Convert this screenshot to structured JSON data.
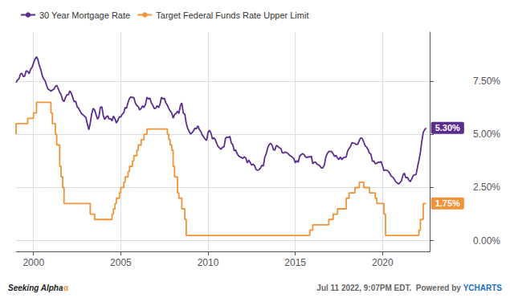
{
  "chart_data": {
    "type": "line",
    "series": [
      {
        "name": "30 Year Mortgage Rate",
        "color": "#5b2d8e",
        "x": [
          1999.0,
          1999.08,
          1999.17,
          1999.25,
          1999.33,
          1999.42,
          1999.5,
          1999.58,
          1999.67,
          1999.75,
          1999.83,
          1999.92,
          2000.0,
          2000.08,
          2000.17,
          2000.25,
          2000.33,
          2000.42,
          2000.5,
          2000.58,
          2000.67,
          2000.75,
          2000.83,
          2000.92,
          2001.0,
          2001.08,
          2001.17,
          2001.25,
          2001.33,
          2001.42,
          2001.5,
          2001.58,
          2001.67,
          2001.75,
          2001.83,
          2001.92,
          2002.0,
          2002.08,
          2002.17,
          2002.25,
          2002.33,
          2002.42,
          2002.5,
          2002.58,
          2002.67,
          2002.75,
          2002.83,
          2002.92,
          2003.0,
          2003.08,
          2003.17,
          2003.25,
          2003.33,
          2003.42,
          2003.5,
          2003.58,
          2003.67,
          2003.75,
          2003.83,
          2003.92,
          2004.0,
          2004.08,
          2004.17,
          2004.25,
          2004.33,
          2004.42,
          2004.5,
          2004.58,
          2004.67,
          2004.75,
          2004.83,
          2004.92,
          2005.0,
          2005.08,
          2005.17,
          2005.25,
          2005.33,
          2005.42,
          2005.5,
          2005.58,
          2005.67,
          2005.75,
          2005.83,
          2005.92,
          2006.0,
          2006.08,
          2006.17,
          2006.25,
          2006.33,
          2006.42,
          2006.5,
          2006.58,
          2006.67,
          2006.75,
          2006.83,
          2006.92,
          2007.0,
          2007.08,
          2007.17,
          2007.25,
          2007.33,
          2007.42,
          2007.5,
          2007.58,
          2007.67,
          2007.75,
          2007.83,
          2007.92,
          2008.0,
          2008.08,
          2008.17,
          2008.25,
          2008.33,
          2008.42,
          2008.5,
          2008.58,
          2008.67,
          2008.75,
          2008.83,
          2008.92,
          2009.0,
          2009.08,
          2009.17,
          2009.25,
          2009.33,
          2009.42,
          2009.5,
          2009.58,
          2009.67,
          2009.75,
          2009.83,
          2009.92,
          2010.0,
          2010.08,
          2010.17,
          2010.25,
          2010.33,
          2010.42,
          2010.5,
          2010.58,
          2010.67,
          2010.75,
          2010.83,
          2010.92,
          2011.0,
          2011.08,
          2011.17,
          2011.25,
          2011.33,
          2011.42,
          2011.5,
          2011.58,
          2011.67,
          2011.75,
          2011.83,
          2011.92,
          2012.0,
          2012.08,
          2012.17,
          2012.25,
          2012.33,
          2012.42,
          2012.5,
          2012.58,
          2012.67,
          2012.75,
          2012.83,
          2012.92,
          2013.0,
          2013.08,
          2013.17,
          2013.25,
          2013.33,
          2013.42,
          2013.5,
          2013.58,
          2013.67,
          2013.75,
          2013.83,
          2013.92,
          2014.0,
          2014.08,
          2014.17,
          2014.25,
          2014.33,
          2014.42,
          2014.5,
          2014.58,
          2014.67,
          2014.75,
          2014.83,
          2014.92,
          2015.0,
          2015.08,
          2015.17,
          2015.25,
          2015.33,
          2015.42,
          2015.5,
          2015.58,
          2015.67,
          2015.75,
          2015.83,
          2015.92,
          2016.0,
          2016.08,
          2016.17,
          2016.25,
          2016.33,
          2016.42,
          2016.5,
          2016.58,
          2016.67,
          2016.75,
          2016.83,
          2016.92,
          2017.0,
          2017.08,
          2017.17,
          2017.25,
          2017.33,
          2017.42,
          2017.5,
          2017.58,
          2017.67,
          2017.75,
          2017.83,
          2017.92,
          2018.0,
          2018.08,
          2018.17,
          2018.25,
          2018.33,
          2018.42,
          2018.5,
          2018.58,
          2018.67,
          2018.75,
          2018.83,
          2018.92,
          2019.0,
          2019.08,
          2019.17,
          2019.25,
          2019.33,
          2019.42,
          2019.5,
          2019.58,
          2019.67,
          2019.75,
          2019.83,
          2019.92,
          2020.0,
          2020.08,
          2020.17,
          2020.25,
          2020.33,
          2020.42,
          2020.5,
          2020.58,
          2020.67,
          2020.75,
          2020.83,
          2020.92,
          2021.0,
          2021.08,
          2021.17,
          2021.25,
          2021.33,
          2021.42,
          2021.5,
          2021.58,
          2021.67,
          2021.75,
          2021.83,
          2021.92,
          2022.0,
          2022.08,
          2022.17,
          2022.25,
          2022.33,
          2022.42,
          2022.5
        ],
        "values": [
          7.43,
          7.55,
          7.61,
          7.83,
          7.87,
          7.71,
          7.74,
          7.99,
          7.95,
          7.85,
          8.05,
          8.15,
          8.35,
          8.52,
          8.64,
          8.52,
          8.24,
          8.03,
          7.77,
          7.61,
          7.51,
          7.29,
          7.13,
          7.08,
          7.03,
          7.08,
          7.12,
          7.24,
          7.31,
          7.13,
          6.97,
          6.87,
          6.61,
          6.54,
          6.72,
          6.86,
          6.86,
          7.04,
          6.92,
          6.73,
          6.53,
          6.55,
          6.3,
          6.23,
          6.09,
          5.97,
          5.92,
          5.85,
          5.8,
          5.51,
          5.21,
          5.52,
          5.94,
          6.22,
          6.15,
          5.93,
          5.71,
          5.83,
          6.27,
          6.29,
          5.87,
          5.7,
          5.82,
          5.87,
          5.72,
          5.73,
          5.63,
          5.86,
          5.72,
          5.53,
          5.66,
          5.82,
          5.82,
          5.94,
          6.01,
          6.26,
          6.22,
          6.51,
          6.68,
          6.76,
          6.73,
          6.73,
          6.48,
          6.35,
          6.31,
          6.14,
          6.22,
          6.34,
          6.26,
          6.42,
          6.74,
          6.66,
          6.7,
          6.48,
          6.37,
          6.21,
          6.22,
          6.34,
          6.26,
          6.42,
          6.74,
          6.66,
          6.7,
          6.48,
          6.37,
          6.21,
          6.1,
          6.0,
          5.76,
          5.93,
          5.98,
          6.08,
          5.98,
          6.36,
          6.47,
          6.0,
          5.94,
          5.53,
          5.29,
          5.14,
          5.01,
          5.07,
          5.17,
          5.29,
          5.25,
          5.4,
          5.22,
          5.14,
          4.97,
          4.88,
          4.78,
          4.71,
          5.09,
          5.19,
          5.05,
          4.78,
          4.84,
          4.74,
          4.56,
          4.43,
          4.35,
          4.3,
          4.39,
          4.42,
          4.81,
          4.87,
          4.84,
          4.91,
          4.6,
          4.51,
          4.22,
          4.27,
          4.09,
          3.99,
          3.94,
          3.91,
          3.87,
          3.95,
          3.87,
          3.66,
          3.79,
          3.67,
          3.55,
          3.6,
          3.52,
          3.35,
          3.31,
          3.34,
          3.41,
          3.54,
          3.51,
          3.93,
          4.07,
          4.37,
          4.51,
          4.58,
          4.49,
          4.27,
          4.26,
          4.48,
          4.43,
          4.37,
          4.34,
          4.14,
          4.12,
          4.17,
          4.14,
          4.1,
          4.02,
          3.97,
          3.93,
          3.86,
          3.66,
          3.76,
          3.69,
          3.98,
          4.04,
          4.09,
          4.05,
          3.94,
          3.91,
          3.95,
          3.94,
          3.97,
          3.62,
          3.68,
          3.69,
          3.59,
          3.57,
          3.51,
          3.41,
          3.43,
          3.57,
          3.94,
          4.09,
          4.2,
          4.19,
          4.2,
          4.08,
          3.96,
          4.01,
          3.88,
          3.82,
          3.93,
          3.81,
          3.9,
          3.92,
          3.94,
          4.22,
          4.33,
          4.44,
          4.61,
          4.59,
          4.57,
          4.52,
          4.53,
          4.72,
          4.83,
          4.81,
          4.64,
          4.46,
          4.41,
          4.28,
          4.12,
          4.07,
          3.73,
          3.75,
          3.62,
          3.64,
          3.69,
          3.68,
          3.72,
          3.51,
          3.29,
          3.33,
          3.31,
          3.26,
          3.15,
          3.03,
          2.99,
          2.9,
          2.78,
          2.72,
          2.67,
          2.73,
          2.81,
          3.08,
          3.18,
          2.96,
          2.98,
          2.87,
          2.77,
          2.9,
          3.05,
          3.1,
          3.11,
          3.45,
          3.76,
          4.16,
          4.67,
          5.09,
          5.23,
          5.3
        ]
      },
      {
        "name": "Target Federal Funds Rate Upper Limit",
        "color": "#f0943a",
        "x": [
          1999.0,
          1999.0,
          1999.67,
          1999.67,
          2000.0,
          2000.0,
          2000.17,
          2000.17,
          2001.0,
          2001.0,
          2001.08,
          2001.08,
          2001.25,
          2001.25,
          2001.33,
          2001.33,
          2001.5,
          2001.5,
          2001.58,
          2001.58,
          2001.67,
          2001.67,
          2001.75,
          2001.75,
          2003.25,
          2003.25,
          2003.5,
          2003.5,
          2004.5,
          2004.5,
          2004.58,
          2004.58,
          2004.67,
          2004.67,
          2004.75,
          2004.75,
          2004.92,
          2004.92,
          2005.0,
          2005.0,
          2005.17,
          2005.17,
          2005.25,
          2005.25,
          2005.42,
          2005.42,
          2005.5,
          2005.5,
          2005.67,
          2005.67,
          2005.75,
          2005.75,
          2005.92,
          2005.92,
          2006.0,
          2006.0,
          2006.17,
          2006.17,
          2006.33,
          2006.33,
          2006.5,
          2006.5,
          2007.67,
          2007.67,
          2007.75,
          2007.75,
          2007.83,
          2007.83,
          2007.92,
          2007.92,
          2008.0,
          2008.0,
          2008.08,
          2008.08,
          2008.25,
          2008.25,
          2008.33,
          2008.33,
          2008.5,
          2008.5,
          2008.67,
          2008.67,
          2008.75,
          2008.75,
          2015.83,
          2015.83,
          2016.0,
          2016.0,
          2016.92,
          2016.92,
          2017.17,
          2017.17,
          2017.42,
          2017.42,
          2017.92,
          2017.92,
          2018.08,
          2018.08,
          2018.42,
          2018.42,
          2018.67,
          2018.67,
          2018.92,
          2018.92,
          2019.25,
          2019.25,
          2019.58,
          2019.58,
          2019.67,
          2019.67,
          2020.08,
          2020.08,
          2020.17,
          2020.17,
          2022.08,
          2022.08,
          2022.17,
          2022.17,
          2022.33,
          2022.33,
          2022.5
        ],
        "values": [
          5.0,
          5.5,
          5.5,
          5.75,
          5.75,
          6.0,
          6.0,
          6.5,
          6.5,
          6.0,
          6.0,
          5.5,
          5.5,
          5.0,
          5.0,
          4.5,
          4.5,
          3.5,
          3.5,
          3.0,
          3.0,
          2.5,
          2.5,
          1.75,
          1.75,
          1.25,
          1.25,
          1.0,
          1.0,
          1.25,
          1.25,
          1.5,
          1.5,
          1.75,
          1.75,
          2.0,
          2.0,
          2.25,
          2.25,
          2.5,
          2.5,
          2.75,
          2.75,
          3.0,
          3.0,
          3.25,
          3.25,
          3.5,
          3.5,
          3.75,
          3.75,
          4.0,
          4.0,
          4.25,
          4.25,
          4.5,
          4.5,
          4.75,
          4.75,
          5.0,
          5.0,
          5.25,
          5.25,
          5.0,
          5.0,
          4.75,
          4.75,
          4.5,
          4.5,
          4.25,
          4.25,
          3.5,
          3.5,
          3.0,
          3.0,
          2.25,
          2.25,
          2.0,
          2.0,
          1.5,
          1.5,
          1.0,
          1.0,
          0.25,
          0.25,
          0.5,
          0.5,
          0.75,
          0.75,
          1.0,
          1.0,
          1.25,
          1.25,
          1.5,
          1.5,
          2.0,
          2.0,
          2.25,
          2.25,
          2.5,
          2.5,
          2.75,
          2.75,
          2.5,
          2.5,
          2.25,
          2.25,
          2.0,
          2.0,
          1.75,
          1.75,
          1.25,
          1.25,
          0.25,
          0.25,
          0.5,
          0.5,
          1.0,
          1.0,
          1.75,
          1.75
        ]
      }
    ],
    "xlim": [
      1999.0,
      2022.7
    ],
    "xticks": [
      2000,
      2005,
      2010,
      2015,
      2020
    ],
    "ylim": [
      -0.5,
      9.8
    ],
    "yticks": [
      {
        "value": 0.0,
        "label": "0.00%"
      },
      {
        "value": 2.5,
        "label": "2.50%"
      },
      {
        "value": 5.0,
        "label": "5.00%"
      },
      {
        "value": 7.5,
        "label": "7.50%"
      }
    ],
    "grid": true,
    "legend": "upper left",
    "annotations": [
      {
        "text": "5.30%",
        "series": "30 Year Mortgage Rate"
      },
      {
        "text": "1.75%",
        "series": "Target Federal Funds Rate Upper Limit"
      },
      {
        "text": "Seeking Alpha",
        "color": "#222222"
      },
      {
        "text": "α",
        "color": "#f0943a"
      },
      {
        "text": "Jul 11 2022, 9:07PM EDT.  Powered by ",
        "color": "#666666"
      },
      {
        "text": "YCHARTS",
        "color": "#1a6fc4"
      }
    ]
  }
}
